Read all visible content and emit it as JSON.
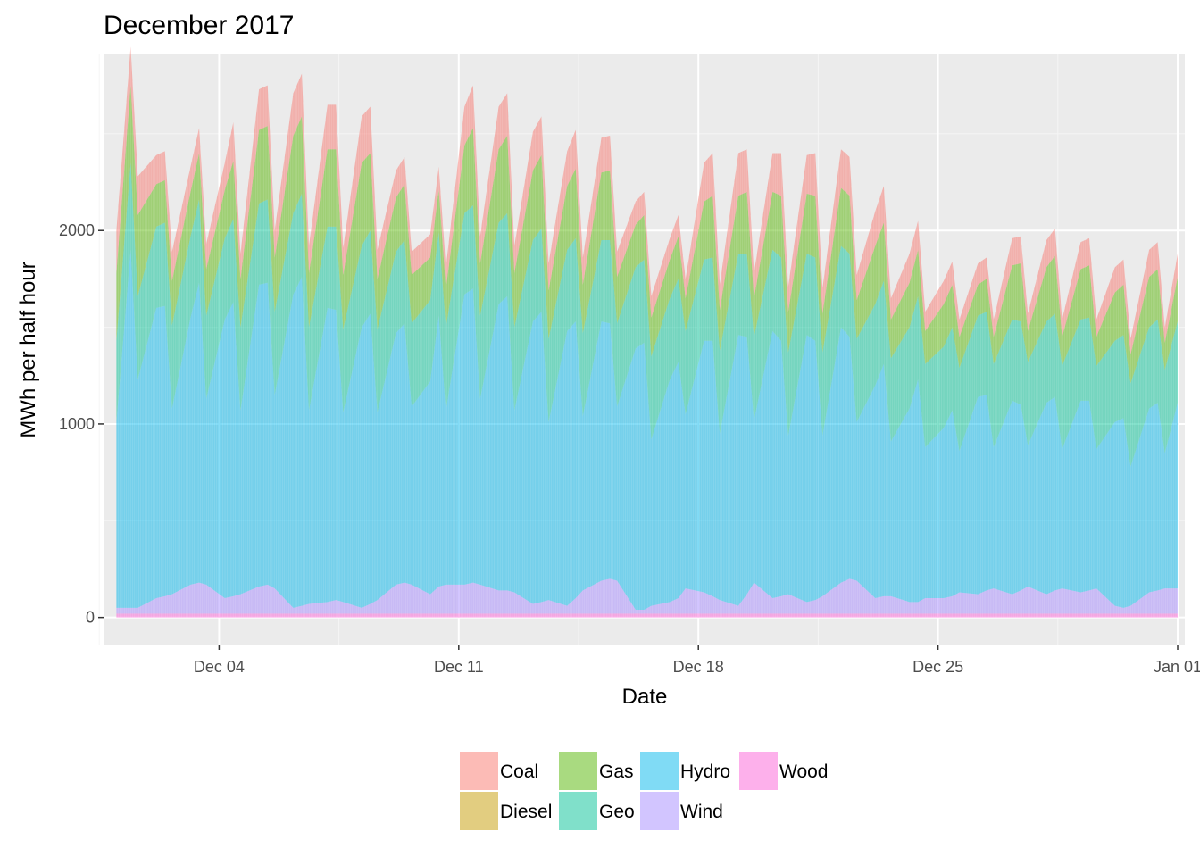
{
  "chart_data": {
    "type": "area",
    "stacked": true,
    "title": "December 2017",
    "xlabel": "Date",
    "ylabel": "MWh per half hour",
    "x_ticks": [
      "Dec 04",
      "Dec 11",
      "Dec 18",
      "Dec 25",
      "Jan 01"
    ],
    "y_ticks": [
      "0",
      "1000",
      "2000"
    ],
    "x_range": [
      "2017-11-30T15:00",
      "2018-01-01T05:00"
    ],
    "ylim": [
      -140,
      2910
    ],
    "grid": true,
    "legend_position": "bottom",
    "legend": [
      {
        "name": "Coal",
        "color": "#F8766D"
      },
      {
        "name": "Diesel",
        "color": "#C49A00"
      },
      {
        "name": "Gas",
        "color": "#53B400"
      },
      {
        "name": "Geo",
        "color": "#00C094"
      },
      {
        "name": "Hydro",
        "color": "#00B6EB"
      },
      {
        "name": "Wind",
        "color": "#A58AFF"
      },
      {
        "name": "Wood",
        "color": "#FB61D7"
      }
    ],
    "fill_alpha": 0.5,
    "x": [
      "2017-12-01T00:00",
      "2017-12-01T10:00",
      "2017-12-01T15:00",
      "2017-12-02T04:00",
      "2017-12-02T10:00",
      "2017-12-02T15:00",
      "2017-12-03T04:00",
      "2017-12-03T10:00",
      "2017-12-03T15:00",
      "2017-12-04T04:00",
      "2017-12-04T10:00",
      "2017-12-04T15:00",
      "2017-12-05T04:00",
      "2017-12-05T10:00",
      "2017-12-05T15:00",
      "2017-12-06T04:00",
      "2017-12-06T10:00",
      "2017-12-06T15:00",
      "2017-12-07T04:00",
      "2017-12-07T10:00",
      "2017-12-07T15:00",
      "2017-12-08T04:00",
      "2017-12-08T10:00",
      "2017-12-08T15:00",
      "2017-12-09T04:00",
      "2017-12-09T10:00",
      "2017-12-09T15:00",
      "2017-12-10T04:00",
      "2017-12-10T10:00",
      "2017-12-10T15:00",
      "2017-12-11T04:00",
      "2017-12-11T10:00",
      "2017-12-11T15:00",
      "2017-12-12T04:00",
      "2017-12-12T10:00",
      "2017-12-12T15:00",
      "2017-12-13T04:00",
      "2017-12-13T10:00",
      "2017-12-13T15:00",
      "2017-12-14T04:00",
      "2017-12-14T10:00",
      "2017-12-14T15:00",
      "2017-12-15T04:00",
      "2017-12-15T10:00",
      "2017-12-15T15:00",
      "2017-12-16T04:00",
      "2017-12-16T10:00",
      "2017-12-16T15:00",
      "2017-12-17T04:00",
      "2017-12-17T10:00",
      "2017-12-17T15:00",
      "2017-12-18T04:00",
      "2017-12-18T10:00",
      "2017-12-18T15:00",
      "2017-12-19T04:00",
      "2017-12-19T10:00",
      "2017-12-19T15:00",
      "2017-12-20T04:00",
      "2017-12-20T10:00",
      "2017-12-20T15:00",
      "2017-12-21T04:00",
      "2017-12-21T10:00",
      "2017-12-21T15:00",
      "2017-12-22T04:00",
      "2017-12-22T10:00",
      "2017-12-22T15:00",
      "2017-12-23T04:00",
      "2017-12-23T10:00",
      "2017-12-23T15:00",
      "2017-12-24T04:00",
      "2017-12-24T10:00",
      "2017-12-24T15:00",
      "2017-12-25T04:00",
      "2017-12-25T10:00",
      "2017-12-25T15:00",
      "2017-12-26T04:00",
      "2017-12-26T10:00",
      "2017-12-26T15:00",
      "2017-12-27T04:00",
      "2017-12-27T10:00",
      "2017-12-27T15:00",
      "2017-12-28T04:00",
      "2017-12-28T10:00",
      "2017-12-28T15:00",
      "2017-12-29T04:00",
      "2017-12-29T10:00",
      "2017-12-29T15:00",
      "2017-12-30T04:00",
      "2017-12-30T10:00",
      "2017-12-30T15:00",
      "2017-12-31T04:00",
      "2017-12-31T10:00",
      "2017-12-31T15:00",
      "2018-01-01T00:00"
    ],
    "series": [
      {
        "name": "Wood",
        "values": [
          20,
          20,
          20,
          20,
          20,
          20,
          20,
          20,
          20,
          20,
          20,
          20,
          20,
          20,
          20,
          20,
          20,
          20,
          20,
          20,
          20,
          20,
          20,
          20,
          20,
          20,
          20,
          20,
          20,
          20,
          20,
          20,
          20,
          20,
          20,
          20,
          20,
          20,
          20,
          20,
          20,
          20,
          20,
          20,
          20,
          20,
          20,
          20,
          20,
          20,
          20,
          20,
          20,
          20,
          20,
          20,
          20,
          20,
          20,
          20,
          20,
          20,
          20,
          20,
          20,
          20,
          20,
          20,
          20,
          20,
          20,
          20,
          20,
          20,
          20,
          20,
          20,
          20,
          20,
          20,
          20,
          20,
          20,
          20,
          20,
          20,
          20,
          20,
          20,
          20,
          20,
          20,
          20,
          20
        ]
      },
      {
        "name": "Wind",
        "values": [
          30,
          30,
          30,
          80,
          90,
          100,
          150,
          160,
          150,
          80,
          90,
          100,
          140,
          150,
          130,
          30,
          40,
          50,
          60,
          70,
          60,
          30,
          50,
          70,
          150,
          160,
          150,
          100,
          140,
          150,
          150,
          160,
          150,
          120,
          120,
          110,
          50,
          60,
          70,
          40,
          80,
          120,
          170,
          180,
          170,
          20,
          20,
          40,
          60,
          80,
          130,
          110,
          90,
          70,
          40,
          100,
          160,
          80,
          90,
          100,
          60,
          70,
          90,
          160,
          180,
          170,
          80,
          90,
          90,
          60,
          60,
          80,
          80,
          90,
          110,
          100,
          120,
          130,
          100,
          120,
          140,
          100,
          120,
          130,
          110,
          120,
          130,
          40,
          30,
          40,
          110,
          120,
          130,
          130
        ]
      },
      {
        "name": "Hydro",
        "values": [
          960,
          1850,
          1180,
          1500,
          1500,
          960,
          1380,
          1550,
          960,
          1440,
          1520,
          950,
          1560,
          1560,
          1000,
          1620,
          1700,
          1000,
          1520,
          1500,
          980,
          1450,
          1500,
          970,
          1300,
          1340,
          920,
          1100,
          1400,
          900,
          1500,
          1520,
          960,
          1480,
          1520,
          940,
          1460,
          1500,
          920,
          1420,
          1430,
          900,
          1340,
          1320,
          900,
          1350,
          1380,
          860,
          1150,
          1220,
          900,
          1300,
          1320,
          860,
          1400,
          1330,
          840,
          1380,
          1320,
          820,
          1380,
          1340,
          830,
          1320,
          1250,
          820,
          1100,
          1200,
          800,
          1000,
          1150,
          780,
          880,
          960,
          730,
          1020,
          1010,
          730,
          1000,
          960,
          730,
          990,
          1000,
          720,
          990,
          980,
          720,
          950,
          980,
          720,
          950,
          970,
          700,
          960
        ]
      },
      {
        "name": "Geo",
        "values": [
          420,
          450,
          430,
          420,
          430,
          430,
          420,
          430,
          430,
          420,
          430,
          430,
          420,
          430,
          430,
          420,
          430,
          430,
          420,
          430,
          430,
          420,
          430,
          430,
          420,
          430,
          430,
          420,
          430,
          430,
          420,
          430,
          430,
          420,
          430,
          430,
          420,
          430,
          430,
          420,
          430,
          430,
          420,
          430,
          430,
          420,
          430,
          430,
          420,
          430,
          430,
          420,
          430,
          430,
          420,
          430,
          430,
          420,
          430,
          430,
          420,
          430,
          430,
          420,
          430,
          430,
          420,
          430,
          430,
          420,
          430,
          430,
          420,
          430,
          430,
          420,
          430,
          430,
          420,
          430,
          430,
          420,
          430,
          430,
          420,
          430,
          430,
          420,
          430,
          430,
          420,
          430,
          430,
          420
        ]
      },
      {
        "name": "Gas",
        "values": [
          350,
          400,
          420,
          220,
          220,
          230,
          230,
          240,
          240,
          250,
          300,
          250,
          380,
          380,
          280,
          400,
          400,
          280,
          400,
          400,
          280,
          430,
          400,
          260,
          280,
          290,
          250,
          220,
          220,
          200,
          350,
          400,
          270,
          380,
          400,
          280,
          360,
          380,
          250,
          330,
          360,
          250,
          350,
          360,
          240,
          220,
          230,
          200,
          200,
          220,
          170,
          300,
          320,
          210,
          300,
          320,
          200,
          300,
          320,
          210,
          310,
          320,
          200,
          300,
          300,
          200,
          300,
          300,
          200,
          230,
          240,
          170,
          220,
          220,
          160,
          160,
          170,
          140,
          280,
          300,
          160,
          280,
          300,
          150,
          260,
          270,
          150,
          250,
          260,
          150,
          260,
          260,
          140,
          230
        ]
      },
      {
        "name": "Coal",
        "values": [
          220,
          200,
          200,
          150,
          150,
          150,
          130,
          130,
          130,
          140,
          200,
          130,
          210,
          210,
          140,
          220,
          220,
          140,
          230,
          230,
          140,
          240,
          240,
          150,
          140,
          140,
          120,
          120,
          120,
          110,
          200,
          220,
          140,
          220,
          220,
          140,
          200,
          200,
          140,
          180,
          200,
          140,
          180,
          180,
          130,
          120,
          120,
          110,
          110,
          110,
          100,
          200,
          220,
          130,
          220,
          220,
          130,
          200,
          220,
          130,
          200,
          220,
          130,
          200,
          200,
          130,
          180,
          190,
          110,
          150,
          150,
          100,
          120,
          120,
          90,
          110,
          110,
          90,
          140,
          140,
          90,
          140,
          140,
          90,
          140,
          140,
          90,
          130,
          130,
          80,
          140,
          140,
          80,
          120
        ]
      }
    ]
  }
}
